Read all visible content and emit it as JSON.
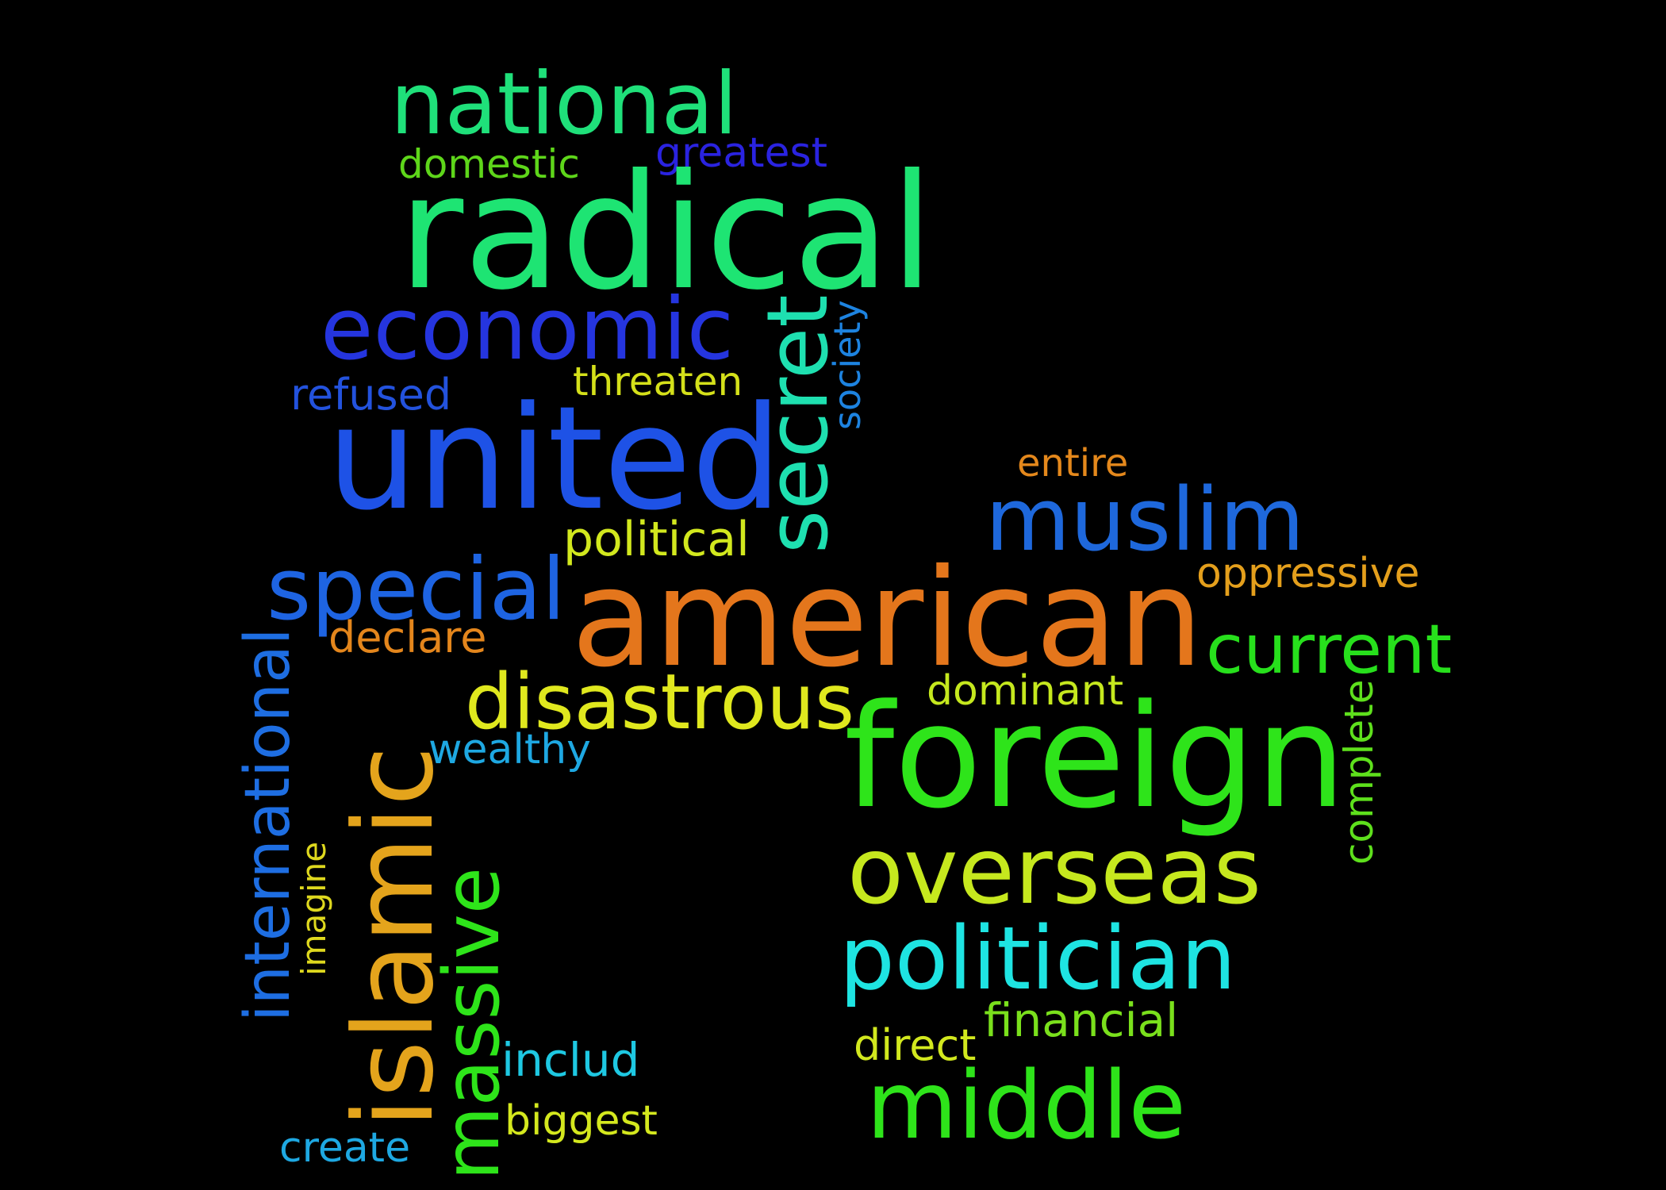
{
  "words": [
    {
      "text": "national",
      "color": "#1fe07a"
    },
    {
      "text": "domestic",
      "color": "#5ed61a"
    },
    {
      "text": "greatest",
      "color": "#2a23e0"
    },
    {
      "text": "radical",
      "color": "#1ee473"
    },
    {
      "text": "economic",
      "color": "#2535df"
    },
    {
      "text": "refused",
      "color": "#2352dd"
    },
    {
      "text": "threaten",
      "color": "#d4e01a"
    },
    {
      "text": "united",
      "color": "#1e52e6"
    },
    {
      "text": "secret",
      "color": "#1ee0b0"
    },
    {
      "text": "society",
      "color": "#1d83e0"
    },
    {
      "text": "entire",
      "color": "#e4881c"
    },
    {
      "text": "muslim",
      "color": "#1e68dc"
    },
    {
      "text": "political",
      "color": "#d2e81e"
    },
    {
      "text": "special",
      "color": "#1e64e2"
    },
    {
      "text": "oppressive",
      "color": "#e49f1c"
    },
    {
      "text": "american",
      "color": "#e4761c"
    },
    {
      "text": "declare",
      "color": "#e4861c"
    },
    {
      "text": "current",
      "color": "#27e01c"
    },
    {
      "text": "international",
      "color": "#1e6ee2"
    },
    {
      "text": "dominant",
      "color": "#c5e81e"
    },
    {
      "text": "islamic",
      "color": "#e4a41c"
    },
    {
      "text": "disastrous",
      "color": "#e0e81e"
    },
    {
      "text": "complete",
      "color": "#5ee01c"
    },
    {
      "text": "foreign",
      "color": "#2ee41a"
    },
    {
      "text": "wealthy",
      "color": "#1ea8e2"
    },
    {
      "text": "overseas",
      "color": "#c6e81e"
    },
    {
      "text": "imagine",
      "color": "#ded81e"
    },
    {
      "text": "massive",
      "color": "#2ee41a"
    },
    {
      "text": "politician",
      "color": "#1ee4e2"
    },
    {
      "text": "financial",
      "color": "#7ae01c"
    },
    {
      "text": "direct",
      "color": "#d2e81e"
    },
    {
      "text": "includ",
      "color": "#1ec8e2"
    },
    {
      "text": "middle",
      "color": "#2ee41a"
    },
    {
      "text": "biggest",
      "color": "#d4e81e"
    },
    {
      "text": "create",
      "color": "#1ea8e2"
    }
  ]
}
